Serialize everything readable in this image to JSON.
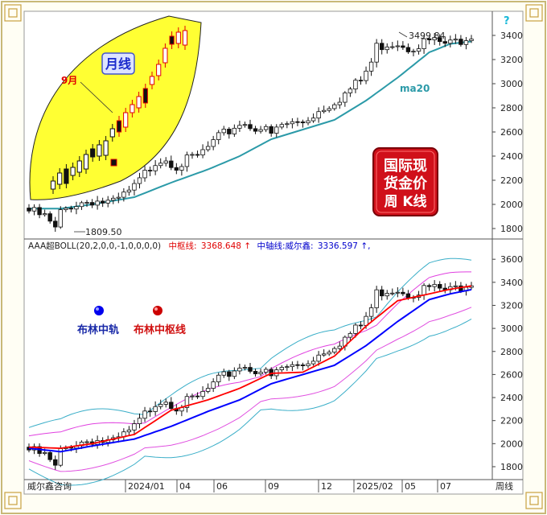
{
  "upper_chart": {
    "max_label": "3499.84",
    "min_label": "1809.50",
    "ma_label": "ma20",
    "help_glyph": "?",
    "inset": {
      "badge": "月线",
      "month_label": "9月"
    },
    "stamp": {
      "line1": "国际现",
      "line2": "货金价",
      "line3": "周  K线"
    }
  },
  "lower_chart": {
    "indicator_name": "AAA超BOLL(20,2,0,0,-1,0,0,0,0)",
    "mid_label": "中枢线:",
    "mid_value": "3368.648",
    "mid_arrow": "↑",
    "axis_label": "中轴线:威尔鑫:",
    "axis_value": "3336.597",
    "axis_arrow": "↑,",
    "legend_mid_rail": "布林中轨",
    "legend_mid_pivot": "布林中枢线"
  },
  "footer": {
    "source": "威尔鑫咨询",
    "period": "周线"
  },
  "colors": {
    "ma20": "#2b9aa8",
    "mid_pivot": "#ff0000",
    "mid_rail": "#0000ff",
    "outer_band": "#3aaec8",
    "inner_band": "#e040e0",
    "lower_band": "#e050e0",
    "inset_fill": "#ffff33",
    "stamp_fill": "#d0101a"
  },
  "chart_data": [
    {
      "type": "candlestick",
      "title": "",
      "x_ticks": [
        "2024/01",
        "04",
        "06",
        "09",
        "12",
        "2025/02",
        "05",
        "07"
      ],
      "y_ticks": [
        1800,
        2000,
        2200,
        2400,
        2600,
        2800,
        3000,
        3200,
        3400
      ],
      "ylim": [
        1760,
        3560
      ],
      "grid": false,
      "annotations": [
        "3499.84",
        "1809.50",
        "ma20"
      ],
      "series": [
        {
          "name": "ma20",
          "x": [
            0,
            6,
            12,
            20,
            27,
            34,
            40,
            46,
            52,
            58,
            64,
            70,
            76,
            80,
            84
          ],
          "values": [
            1965,
            1965,
            2000,
            2060,
            2180,
            2290,
            2400,
            2540,
            2620,
            2700,
            2860,
            3050,
            3260,
            3330,
            3350
          ]
        },
        {
          "name": "close",
          "x": [
            0,
            3,
            5,
            6,
            8,
            12,
            16,
            20,
            24,
            26,
            28,
            32,
            36,
            40,
            44,
            46,
            48,
            52,
            56,
            60,
            63,
            65,
            66,
            68,
            70,
            72,
            76,
            80,
            84
          ],
          "values": [
            1970,
            1920,
            1815,
            1950,
            2020,
            2060,
            2030,
            2160,
            2390,
            2410,
            2350,
            2420,
            2570,
            2700,
            2660,
            2600,
            2680,
            2710,
            2830,
            2940,
            3050,
            3200,
            3330,
            3360,
            3370,
            3330,
            3380,
            3350,
            3440
          ]
        }
      ]
    },
    {
      "type": "candlestick",
      "title": "AAA超BOLL(20,2,0,0,-1,0,0,0,0)",
      "x_ticks": [
        "2024/01",
        "04",
        "06",
        "09",
        "12",
        "2025/02",
        "05",
        "07"
      ],
      "y_ticks": [
        1800,
        2000,
        2200,
        2400,
        2600,
        2800,
        3000,
        3200,
        3400,
        3600
      ],
      "ylim": [
        1730,
        3720
      ],
      "grid": false,
      "series": [
        {
          "name": "布林中轨",
          "x": [
            0,
            6,
            12,
            20,
            27,
            34,
            40,
            46,
            52,
            58,
            64,
            70,
            76,
            80,
            84
          ],
          "values": [
            1960,
            1930,
            1980,
            2040,
            2150,
            2280,
            2380,
            2520,
            2600,
            2680,
            2850,
            3060,
            3250,
            3300,
            3337
          ]
        },
        {
          "name": "布林中枢线",
          "x": [
            0,
            6,
            12,
            20,
            27,
            34,
            40,
            46,
            52,
            58,
            64,
            70,
            76,
            80,
            84
          ],
          "values": [
            1970,
            1960,
            2000,
            2080,
            2290,
            2380,
            2480,
            2610,
            2620,
            2760,
            3020,
            3240,
            3300,
            3340,
            3369
          ]
        }
      ]
    }
  ]
}
